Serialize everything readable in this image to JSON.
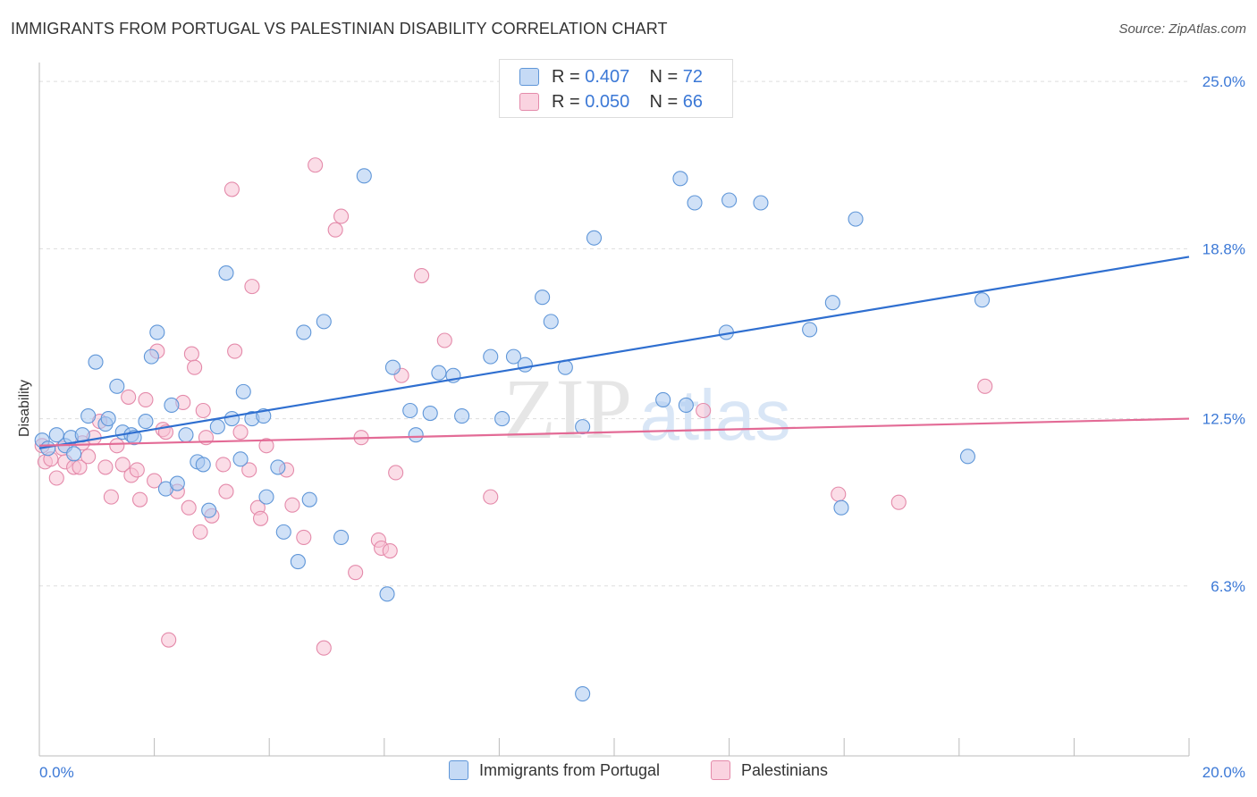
{
  "title": "IMMIGRANTS FROM PORTUGAL VS PALESTINIAN DISABILITY CORRELATION CHART",
  "source": "Source: ZipAtlas.com",
  "watermark": {
    "zip": "ZIP",
    "atlas": "atlas"
  },
  "legend_top": {
    "rows": [
      {
        "r_label": "R =",
        "r_value": "0.407",
        "n_label": "N =",
        "n_value": "72"
      },
      {
        "r_label": "R =",
        "r_value": "0.050",
        "n_label": "N =",
        "n_value": "66"
      }
    ]
  },
  "colors": {
    "blue_fill": "#a9c8f0",
    "blue_stroke": "#5f96d8",
    "blue_line": "#2f6fd0",
    "pink_fill": "#f7c1d3",
    "pink_stroke": "#e48aaa",
    "pink_line": "#e36b96",
    "axis_label": "#3b78d6",
    "grid": "#dddddd"
  },
  "chart_data": {
    "type": "scatter",
    "title": "IMMIGRANTS FROM PORTUGAL VS PALESTINIAN DISABILITY CORRELATION CHART",
    "xlabel": "",
    "ylabel": "Disability",
    "xlim": [
      0,
      20
    ],
    "ylim": [
      0,
      25.7
    ],
    "x_tick_labels": [
      "0.0%",
      "20.0%"
    ],
    "y_ticks": [
      6.3,
      12.5,
      18.8,
      25.0
    ],
    "y_tick_labels": [
      "6.3%",
      "12.5%",
      "18.8%",
      "25.0%"
    ],
    "grid": true,
    "legend": "bottom",
    "series": [
      {
        "name": "Immigrants from Portugal",
        "color": "#a9c8f0",
        "r": 0.407,
        "n": 72,
        "trend": [
          [
            0,
            11.4
          ],
          [
            20,
            18.5
          ]
        ],
        "points": [
          [
            0.05,
            11.7
          ],
          [
            0.15,
            11.4
          ],
          [
            0.3,
            11.9
          ],
          [
            0.45,
            11.5
          ],
          [
            0.55,
            11.8
          ],
          [
            0.6,
            11.2
          ],
          [
            0.75,
            11.9
          ],
          [
            0.85,
            12.6
          ],
          [
            0.98,
            14.6
          ],
          [
            1.15,
            12.3
          ],
          [
            1.2,
            12.5
          ],
          [
            1.35,
            13.7
          ],
          [
            1.45,
            12.0
          ],
          [
            1.6,
            11.9
          ],
          [
            1.65,
            11.8
          ],
          [
            1.85,
            12.4
          ],
          [
            1.95,
            14.8
          ],
          [
            2.05,
            15.7
          ],
          [
            2.2,
            9.9
          ],
          [
            2.3,
            13.0
          ],
          [
            2.4,
            10.1
          ],
          [
            2.55,
            11.9
          ],
          [
            2.75,
            10.9
          ],
          [
            2.85,
            10.8
          ],
          [
            2.95,
            9.1
          ],
          [
            3.1,
            12.2
          ],
          [
            3.25,
            17.9
          ],
          [
            3.35,
            12.5
          ],
          [
            3.5,
            11.0
          ],
          [
            3.55,
            13.5
          ],
          [
            3.7,
            12.5
          ],
          [
            3.9,
            12.6
          ],
          [
            3.95,
            9.6
          ],
          [
            4.15,
            10.7
          ],
          [
            4.25,
            8.3
          ],
          [
            4.5,
            7.2
          ],
          [
            4.6,
            15.7
          ],
          [
            4.7,
            9.5
          ],
          [
            4.95,
            16.1
          ],
          [
            5.25,
            8.1
          ],
          [
            5.65,
            21.5
          ],
          [
            6.05,
            6.0
          ],
          [
            6.15,
            14.4
          ],
          [
            6.45,
            12.8
          ],
          [
            6.55,
            11.9
          ],
          [
            6.8,
            12.7
          ],
          [
            6.95,
            14.2
          ],
          [
            7.2,
            14.1
          ],
          [
            7.35,
            12.6
          ],
          [
            7.85,
            14.8
          ],
          [
            8.05,
            12.5
          ],
          [
            8.25,
            14.8
          ],
          [
            8.45,
            14.5
          ],
          [
            8.75,
            17.0
          ],
          [
            8.9,
            16.1
          ],
          [
            9.15,
            14.4
          ],
          [
            9.45,
            12.2
          ],
          [
            9.45,
            2.3
          ],
          [
            9.65,
            19.2
          ],
          [
            10.85,
            13.2
          ],
          [
            11.15,
            21.4
          ],
          [
            11.25,
            13.0
          ],
          [
            11.4,
            20.5
          ],
          [
            11.95,
            15.7
          ],
          [
            12.0,
            20.6
          ],
          [
            12.55,
            20.5
          ],
          [
            13.4,
            15.8
          ],
          [
            13.8,
            16.8
          ],
          [
            13.95,
            9.2
          ],
          [
            14.2,
            19.9
          ],
          [
            16.15,
            11.1
          ],
          [
            16.4,
            16.9
          ]
        ]
      },
      {
        "name": "Palestinians",
        "color": "#f7c1d3",
        "r": 0.05,
        "n": 66,
        "trend": [
          [
            0,
            11.5
          ],
          [
            20,
            12.5
          ]
        ],
        "points": [
          [
            0.05,
            11.5
          ],
          [
            0.1,
            10.9
          ],
          [
            0.2,
            11.0
          ],
          [
            0.3,
            10.3
          ],
          [
            0.4,
            11.4
          ],
          [
            0.45,
            10.9
          ],
          [
            0.6,
            10.7
          ],
          [
            0.7,
            10.7
          ],
          [
            0.75,
            11.6
          ],
          [
            0.85,
            11.1
          ],
          [
            0.95,
            11.8
          ],
          [
            1.05,
            12.4
          ],
          [
            1.15,
            10.7
          ],
          [
            1.25,
            9.6
          ],
          [
            1.35,
            11.5
          ],
          [
            1.45,
            10.8
          ],
          [
            1.55,
            13.3
          ],
          [
            1.6,
            10.4
          ],
          [
            1.7,
            10.6
          ],
          [
            1.75,
            9.5
          ],
          [
            1.85,
            13.2
          ],
          [
            2.0,
            10.2
          ],
          [
            2.05,
            15.0
          ],
          [
            2.15,
            12.1
          ],
          [
            2.2,
            12.0
          ],
          [
            2.25,
            4.3
          ],
          [
            2.4,
            9.8
          ],
          [
            2.5,
            13.1
          ],
          [
            2.6,
            9.2
          ],
          [
            2.65,
            14.9
          ],
          [
            2.7,
            14.4
          ],
          [
            2.8,
            8.3
          ],
          [
            2.85,
            12.8
          ],
          [
            2.9,
            11.8
          ],
          [
            3.0,
            8.9
          ],
          [
            3.2,
            10.8
          ],
          [
            3.25,
            9.8
          ],
          [
            3.35,
            21.0
          ],
          [
            3.4,
            15.0
          ],
          [
            3.5,
            12.0
          ],
          [
            3.65,
            10.6
          ],
          [
            3.7,
            17.4
          ],
          [
            3.8,
            9.2
          ],
          [
            3.85,
            8.8
          ],
          [
            3.95,
            11.5
          ],
          [
            4.3,
            10.6
          ],
          [
            4.4,
            9.3
          ],
          [
            4.6,
            8.1
          ],
          [
            4.8,
            21.9
          ],
          [
            4.95,
            4.0
          ],
          [
            5.15,
            19.5
          ],
          [
            5.25,
            20.0
          ],
          [
            5.5,
            6.8
          ],
          [
            5.6,
            11.8
          ],
          [
            5.9,
            8.0
          ],
          [
            5.95,
            7.7
          ],
          [
            6.1,
            7.6
          ],
          [
            6.2,
            10.5
          ],
          [
            6.3,
            14.1
          ],
          [
            6.65,
            17.8
          ],
          [
            7.05,
            15.4
          ],
          [
            7.85,
            9.6
          ],
          [
            11.55,
            12.8
          ],
          [
            13.9,
            9.7
          ],
          [
            14.95,
            9.4
          ],
          [
            16.45,
            13.7
          ]
        ]
      }
    ]
  }
}
